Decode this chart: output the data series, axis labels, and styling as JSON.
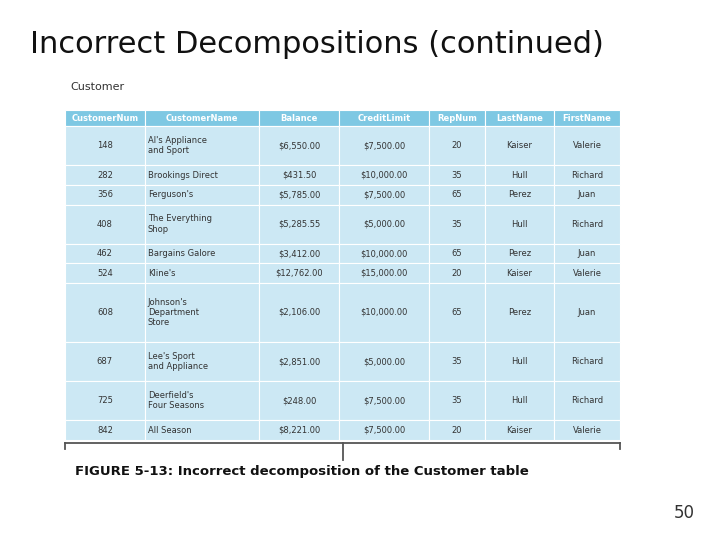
{
  "title": "Incorrect Decompositions (continued)",
  "table_label": "Customer",
  "headers": [
    "CustomerNum",
    "CustomerName",
    "Balance",
    "CreditLimit",
    "RepNum",
    "LastName",
    "FirstName"
  ],
  "rows": [
    [
      "148",
      "Al's Appliance\nand Sport",
      "$6,550.00",
      "$7,500.00",
      "20",
      "Kaiser",
      "Valerie"
    ],
    [
      "282",
      "Brookings Direct",
      "$431.50",
      "$10,000.00",
      "35",
      "Hull",
      "Richard"
    ],
    [
      "356",
      "Ferguson's",
      "$5,785.00",
      "$7,500.00",
      "65",
      "Perez",
      "Juan"
    ],
    [
      "408",
      "The Everything\nShop",
      "$5,285.55",
      "$5,000.00",
      "35",
      "Hull",
      "Richard"
    ],
    [
      "462",
      "Bargains Galore",
      "$3,412.00",
      "$10,000.00",
      "65",
      "Perez",
      "Juan"
    ],
    [
      "524",
      "Kline's",
      "$12,762.00",
      "$15,000.00",
      "20",
      "Kaiser",
      "Valerie"
    ],
    [
      "608",
      "Johnson's\nDepartment\nStore",
      "$2,106.00",
      "$10,000.00",
      "65",
      "Perez",
      "Juan"
    ],
    [
      "687",
      "Lee's Sport\nand Appliance",
      "$2,851.00",
      "$5,000.00",
      "35",
      "Hull",
      "Richard"
    ],
    [
      "725",
      "Deerfield's\nFour Seasons",
      "$248.00",
      "$7,500.00",
      "35",
      "Hull",
      "Richard"
    ],
    [
      "842",
      "All Season",
      "$8,221.00",
      "$7,500.00",
      "20",
      "Kaiser",
      "Valerie"
    ]
  ],
  "header_bg": "#7ec8e3",
  "row_bg": "#cce8f4",
  "header_text": "#ffffff",
  "row_text": "#333333",
  "caption": "FIGURE 5-13: Incorrect decomposition of the Customer table",
  "page_number": "50",
  "bg_color": "#ffffff",
  "title_fontsize": 22,
  "caption_fontsize": 9.5,
  "page_fontsize": 12,
  "table_label_fontsize": 8,
  "header_fontsize": 6.0,
  "cell_fontsize": 6.0
}
